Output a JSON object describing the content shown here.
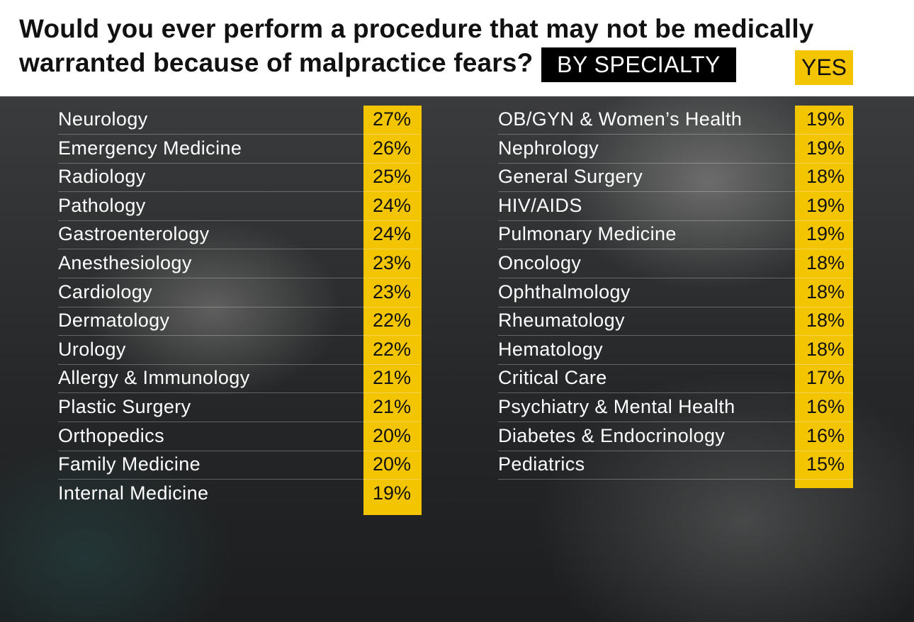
{
  "header": {
    "title_line1": "Would you ever perform a procedure that may not be medically",
    "title_line2": "warranted because of malpractice fears?",
    "by_specialty": "BY SPECIALTY",
    "yes_label": "YES"
  },
  "colors": {
    "highlight": "#f2c500",
    "tag_bg": "#000000",
    "row_text": "#ffffff"
  },
  "chart_data": {
    "type": "table",
    "title": "Would you ever perform a procedure that may not be medically warranted because of malpractice fears?",
    "subtitle": "BY SPECIALTY",
    "value_label": "YES",
    "left": [
      {
        "specialty": "Neurology",
        "yes": "27%"
      },
      {
        "specialty": "Emergency Medicine",
        "yes": "26%"
      },
      {
        "specialty": "Radiology",
        "yes": "25%"
      },
      {
        "specialty": "Pathology",
        "yes": "24%"
      },
      {
        "specialty": "Gastroenterology",
        "yes": "24%"
      },
      {
        "specialty": "Anesthesiology",
        "yes": "23%"
      },
      {
        "specialty": "Cardiology",
        "yes": "23%"
      },
      {
        "specialty": "Dermatology",
        "yes": "22%"
      },
      {
        "specialty": "Urology",
        "yes": "22%"
      },
      {
        "specialty": "Allergy & Immunology",
        "yes": "21%"
      },
      {
        "specialty": "Plastic Surgery",
        "yes": "21%"
      },
      {
        "specialty": "Orthopedics",
        "yes": "20%"
      },
      {
        "specialty": "Family Medicine",
        "yes": "20%"
      },
      {
        "specialty": "Internal Medicine",
        "yes": "19%"
      }
    ],
    "right": [
      {
        "specialty": "OB/GYN & Women’s Health",
        "yes": "19%"
      },
      {
        "specialty": "Nephrology",
        "yes": "19%"
      },
      {
        "specialty": "General Surgery",
        "yes": "18%"
      },
      {
        "specialty": "HIV/AIDS",
        "yes": "19%"
      },
      {
        "specialty": "Pulmonary Medicine",
        "yes": "19%"
      },
      {
        "specialty": "Oncology",
        "yes": "18%"
      },
      {
        "specialty": "Ophthalmology",
        "yes": "18%"
      },
      {
        "specialty": "Rheumatology",
        "yes": "18%"
      },
      {
        "specialty": "Hematology",
        "yes": "18%"
      },
      {
        "specialty": "Critical Care",
        "yes": "17%"
      },
      {
        "specialty": "Psychiatry & Mental Health",
        "yes": "16%"
      },
      {
        "specialty": "Diabetes & Endocrinology",
        "yes": "16%"
      },
      {
        "specialty": "Pediatrics",
        "yes": "15%"
      }
    ]
  }
}
